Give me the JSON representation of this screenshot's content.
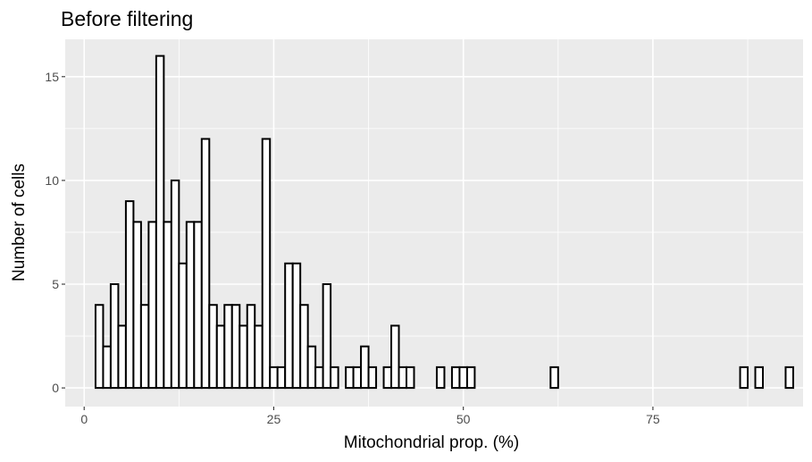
{
  "chart_data": {
    "type": "bar",
    "subtype": "histogram",
    "title": "Before filtering",
    "xlabel": "Mitochondrial prop. (%)",
    "ylabel": "Number of cells",
    "xlim": [
      -2.5,
      94.8
    ],
    "ylim": [
      -0.9,
      16.8
    ],
    "xticks": [
      0,
      25,
      50,
      75
    ],
    "yticks": [
      0,
      5,
      10,
      15
    ],
    "grid": true,
    "legend": "none",
    "bin_width": 1,
    "bin_start": 1.5,
    "counts": [
      4,
      2,
      5,
      3,
      9,
      8,
      4,
      8,
      16,
      8,
      10,
      6,
      8,
      8,
      12,
      4,
      3,
      4,
      4,
      3,
      4,
      3,
      12,
      1,
      1,
      6,
      6,
      4,
      2,
      1,
      5,
      1,
      0,
      1,
      1,
      2,
      1,
      0,
      1,
      3,
      1,
      1,
      0,
      0,
      0,
      1,
      0,
      1,
      1,
      1,
      0,
      0,
      0,
      0,
      0,
      0,
      0,
      0,
      0,
      0,
      1,
      0,
      0,
      0,
      0,
      0,
      0,
      0,
      0,
      0,
      0,
      0,
      0,
      0,
      0,
      0,
      0,
      0,
      0,
      0,
      0,
      0,
      0,
      0,
      0,
      1,
      0,
      1,
      0,
      0,
      0,
      1
    ],
    "colors": {
      "panel": "#EBEBEB",
      "grid": "#FFFFFF",
      "bar_fill": "#FFFFFF",
      "bar_stroke": "#000000",
      "tick": "#333333"
    }
  }
}
